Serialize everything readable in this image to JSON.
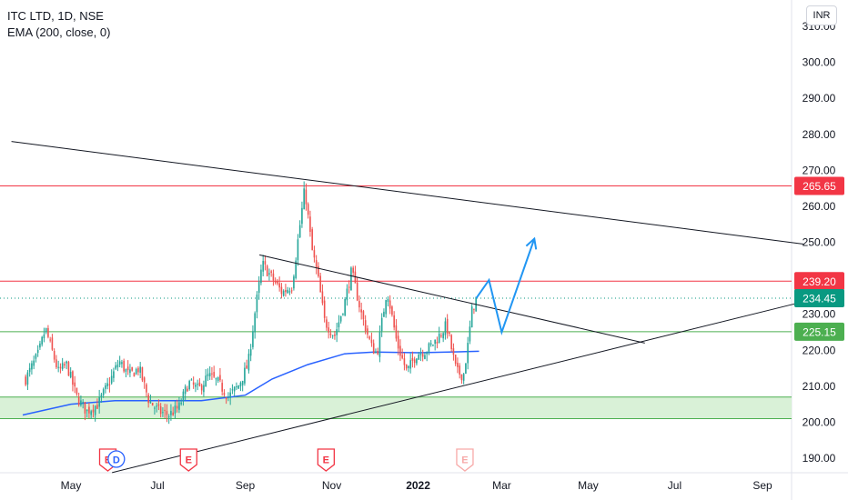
{
  "legend": {
    "symbol": "ITC LTD, 1D, NSE",
    "indicator": "EMA (200, close, 0)"
  },
  "currency_button": "INR",
  "chart_data": {
    "type": "candlestick",
    "ylim": [
      186,
      313
    ],
    "y_ticks": [
      "310.00",
      "300.00",
      "290.00",
      "280.00",
      "270.00",
      "260.00",
      "250.00",
      "240.00",
      "230.00",
      "220.00",
      "210.00",
      "200.00",
      "190.00"
    ],
    "y_tick_values": [
      310,
      300,
      290,
      280,
      270,
      260,
      250,
      240,
      230,
      220,
      210,
      200,
      190
    ],
    "x_ticks": [
      {
        "label": "May",
        "date": "2021-05-01"
      },
      {
        "label": "Jul",
        "date": "2021-07-01"
      },
      {
        "label": "Sep",
        "date": "2021-09-01"
      },
      {
        "label": "Nov",
        "date": "2021-11-01"
      },
      {
        "label": "2022",
        "date": "2022-01-01"
      },
      {
        "label": "Mar",
        "date": "2022-03-01"
      },
      {
        "label": "May",
        "date": "2022-05-01"
      },
      {
        "label": "Jul",
        "date": "2022-07-01"
      },
      {
        "label": "Sep",
        "date": "2022-09-01"
      }
    ],
    "colors": {
      "up": "#26a69a",
      "down": "#ef5350",
      "ema": "#2962ff",
      "red_line": "#f23645",
      "green_line": "#4caf50",
      "zone_fill": "#d5f0d3",
      "trend": "#131722",
      "projection": "#2196f3",
      "last_price": "#089981",
      "pink_event": "#f7a9a8"
    },
    "price_series": [
      {
        "date": "2021-03-30",
        "close": 212
      },
      {
        "date": "2021-04-08",
        "close": 219
      },
      {
        "date": "2021-04-13",
        "close": 226
      },
      {
        "date": "2021-04-22",
        "close": 214
      },
      {
        "date": "2021-04-28",
        "close": 216
      },
      {
        "date": "2021-05-05",
        "close": 207
      },
      {
        "date": "2021-05-12",
        "close": 203
      },
      {
        "date": "2021-05-20",
        "close": 205
      },
      {
        "date": "2021-05-28",
        "close": 211
      },
      {
        "date": "2021-06-04",
        "close": 217
      },
      {
        "date": "2021-06-11",
        "close": 213
      },
      {
        "date": "2021-06-18",
        "close": 215
      },
      {
        "date": "2021-06-25",
        "close": 206
      },
      {
        "date": "2021-07-02",
        "close": 203
      },
      {
        "date": "2021-07-09",
        "close": 202
      },
      {
        "date": "2021-07-16",
        "close": 204
      },
      {
        "date": "2021-07-23",
        "close": 211
      },
      {
        "date": "2021-07-30",
        "close": 209
      },
      {
        "date": "2021-08-06",
        "close": 213
      },
      {
        "date": "2021-08-13",
        "close": 211
      },
      {
        "date": "2021-08-20",
        "close": 207
      },
      {
        "date": "2021-08-27",
        "close": 210
      },
      {
        "date": "2021-09-03",
        "close": 216
      },
      {
        "date": "2021-09-08",
        "close": 231
      },
      {
        "date": "2021-09-13",
        "close": 244
      },
      {
        "date": "2021-09-20",
        "close": 240
      },
      {
        "date": "2021-09-27",
        "close": 236
      },
      {
        "date": "2021-10-04",
        "close": 238
      },
      {
        "date": "2021-10-08",
        "close": 250
      },
      {
        "date": "2021-10-13",
        "close": 265
      },
      {
        "date": "2021-10-18",
        "close": 248
      },
      {
        "date": "2021-10-22",
        "close": 241
      },
      {
        "date": "2021-10-27",
        "close": 228
      },
      {
        "date": "2021-11-03",
        "close": 224
      },
      {
        "date": "2021-11-10",
        "close": 233
      },
      {
        "date": "2021-11-15",
        "close": 242
      },
      {
        "date": "2021-11-22",
        "close": 230
      },
      {
        "date": "2021-11-29",
        "close": 221
      },
      {
        "date": "2021-12-03",
        "close": 219
      },
      {
        "date": "2021-12-10",
        "close": 237
      },
      {
        "date": "2021-12-17",
        "close": 222
      },
      {
        "date": "2021-12-24",
        "close": 214
      },
      {
        "date": "2021-12-31",
        "close": 219
      },
      {
        "date": "2022-01-07",
        "close": 220
      },
      {
        "date": "2022-01-14",
        "close": 223
      },
      {
        "date": "2022-01-21",
        "close": 227
      },
      {
        "date": "2022-01-28",
        "close": 214
      },
      {
        "date": "2022-02-02",
        "close": 213
      },
      {
        "date": "2022-02-05",
        "close": 221
      },
      {
        "date": "2022-02-08",
        "close": 231
      },
      {
        "date": "2022-02-11",
        "close": 234.45
      }
    ],
    "ema_series": [
      {
        "date": "2021-03-28",
        "value": 202
      },
      {
        "date": "2021-05-01",
        "value": 205
      },
      {
        "date": "2021-06-01",
        "value": 206
      },
      {
        "date": "2021-07-01",
        "value": 206
      },
      {
        "date": "2021-08-01",
        "value": 206
      },
      {
        "date": "2021-09-01",
        "value": 207.5
      },
      {
        "date": "2021-09-20",
        "value": 212
      },
      {
        "date": "2021-10-15",
        "value": 216
      },
      {
        "date": "2021-11-10",
        "value": 219
      },
      {
        "date": "2021-12-01",
        "value": 219.5
      },
      {
        "date": "2022-01-01",
        "value": 219.3
      },
      {
        "date": "2022-02-13",
        "value": 219.7
      }
    ],
    "horizontal_lines": [
      {
        "value": 265.65,
        "label": "265.65",
        "color": "red"
      },
      {
        "value": 239.2,
        "label": "239.20",
        "color": "red"
      },
      {
        "value": 225.15,
        "label": "225.15",
        "color": "green"
      }
    ],
    "support_zone": [
      201,
      207
    ],
    "last_price": {
      "value": 234.45,
      "label": "234.45"
    },
    "trendlines": [
      {
        "from": {
          "date": "2021-03-20",
          "value": 278
        },
        "to": {
          "date": "2022-09-30",
          "value": 249.5
        }
      },
      {
        "from": {
          "date": "2021-09-11",
          "value": 246.5
        },
        "to": {
          "date": "2022-06-10",
          "value": 222
        }
      },
      {
        "from": {
          "date": "2021-05-30",
          "value": 186
        },
        "to": {
          "date": "2022-09-30",
          "value": 233.5
        }
      }
    ],
    "projection_path": [
      {
        "date": "2022-02-11",
        "value": 234.45
      },
      {
        "date": "2022-02-20",
        "value": 239.5
      },
      {
        "date": "2022-03-01",
        "value": 225
      },
      {
        "date": "2022-03-24",
        "value": 251
      }
    ],
    "events": [
      {
        "date": "2021-05-27",
        "label": "E",
        "kind": "earnings"
      },
      {
        "date": "2021-06-02",
        "label": "D",
        "kind": "dividend"
      },
      {
        "date": "2021-07-23",
        "label": "E",
        "kind": "earnings"
      },
      {
        "date": "2021-10-28",
        "label": "E",
        "kind": "earnings"
      },
      {
        "date": "2022-02-03",
        "label": "E",
        "kind": "upcoming-earnings"
      }
    ]
  }
}
